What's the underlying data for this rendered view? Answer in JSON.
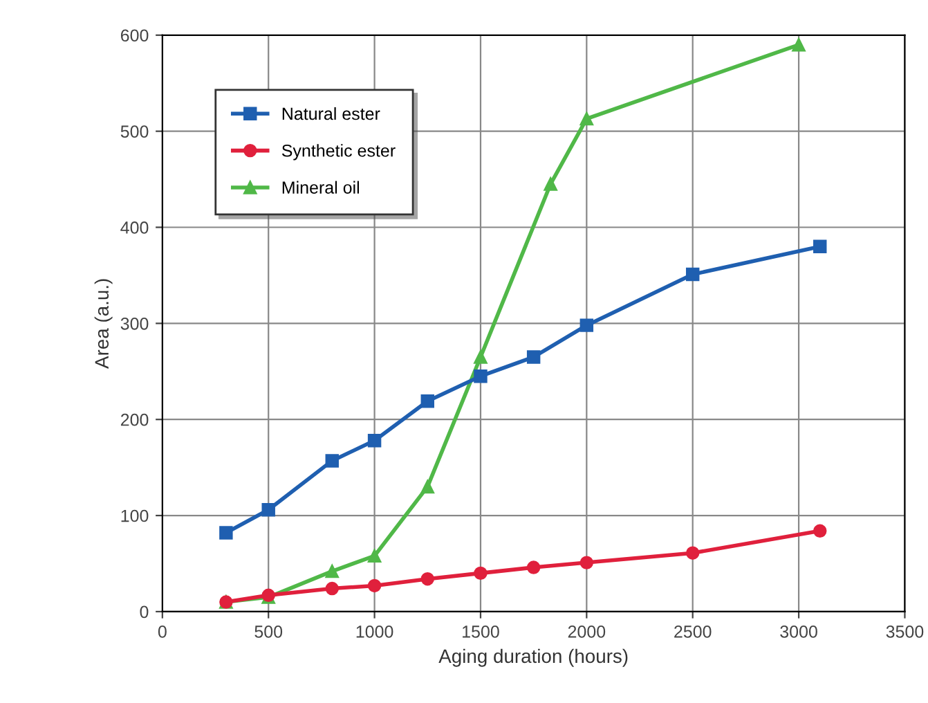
{
  "chart_data": {
    "type": "line",
    "xlabel": "Aging duration (hours)",
    "ylabel": "Area (a.u.)",
    "xlim": [
      0,
      3500
    ],
    "xticks": [
      0,
      500,
      1000,
      1500,
      2000,
      2500,
      3000,
      3500
    ],
    "ylim": [
      0,
      600
    ],
    "yticks": [
      0,
      100,
      200,
      300,
      400,
      500,
      600
    ],
    "grid": true,
    "legend": "top left",
    "series": [
      {
        "name": "Natural ester",
        "color": "#1f5fb0",
        "marker": "square",
        "x": [
          300,
          500,
          800,
          1000,
          1250,
          1500,
          1750,
          2000,
          2500,
          3100
        ],
        "values": [
          82,
          106,
          157,
          178,
          219,
          245,
          265,
          298,
          351,
          380
        ]
      },
      {
        "name": "Synthetic ester",
        "color": "#e0203c",
        "marker": "circle",
        "x": [
          300,
          500,
          800,
          1000,
          1250,
          1500,
          1750,
          2000,
          2500,
          3100
        ],
        "values": [
          10,
          17,
          24,
          27,
          34,
          40,
          46,
          51,
          61,
          84
        ]
      },
      {
        "name": "Mineral oil",
        "color": "#50b848",
        "marker": "triangle",
        "x": [
          300,
          500,
          800,
          1000,
          1250,
          1500,
          1830,
          2000,
          3000
        ],
        "values": [
          10,
          15,
          42,
          58,
          130,
          265,
          445,
          513,
          590
        ]
      }
    ]
  }
}
